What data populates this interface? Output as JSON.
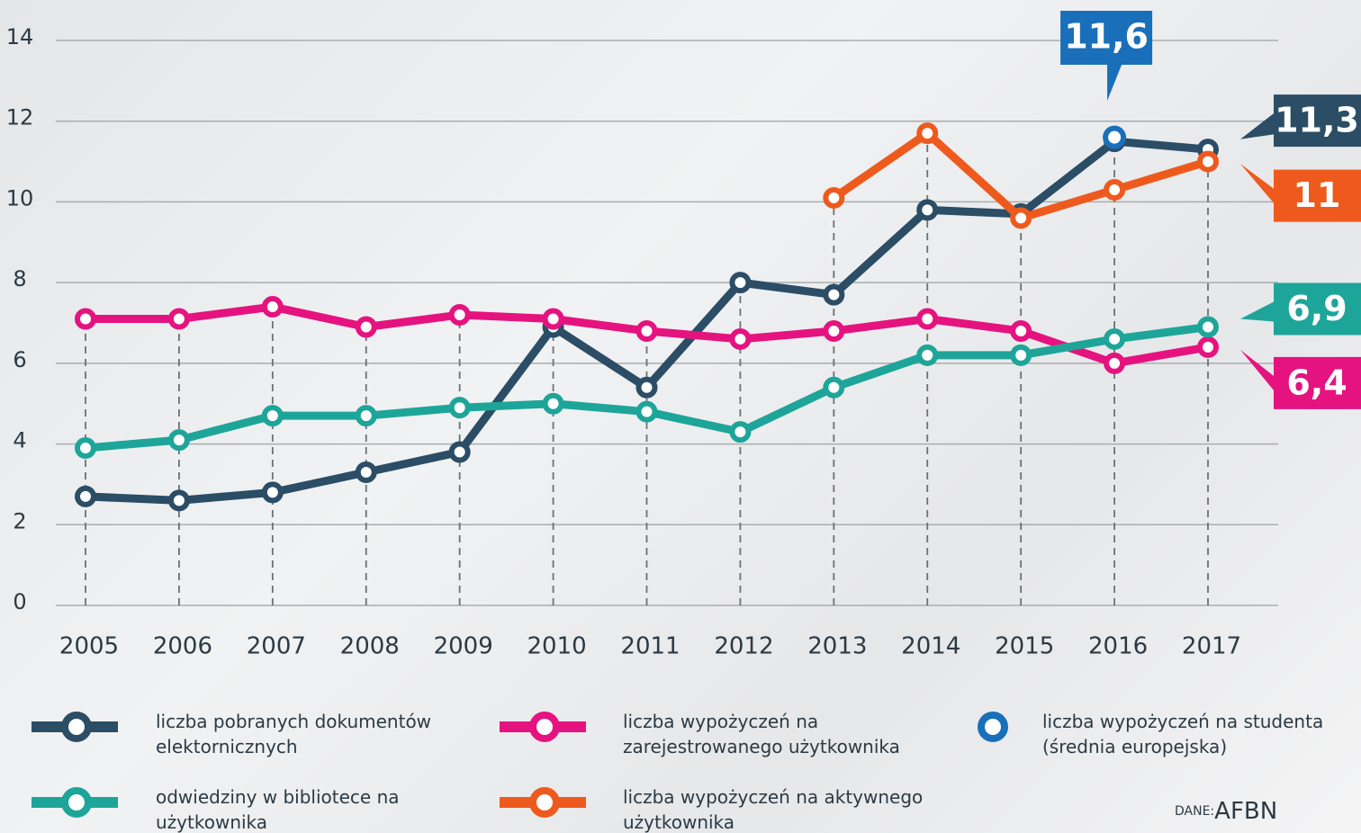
{
  "chart_data": {
    "type": "line",
    "x": [
      "2005",
      "2006",
      "2007",
      "2008",
      "2009",
      "2010",
      "2011",
      "2012",
      "2013",
      "2014",
      "2015",
      "2016",
      "2017"
    ],
    "ylim": [
      0,
      14
    ],
    "yticks": [
      0,
      2,
      4,
      6,
      8,
      10,
      12,
      14
    ],
    "grid": true,
    "series": [
      {
        "name": "liczba pobranych dokumentów elektornicznych",
        "color": "#2b4d66",
        "values": [
          2.7,
          2.6,
          2.8,
          3.3,
          3.8,
          6.9,
          5.4,
          8.0,
          7.7,
          9.8,
          9.7,
          11.5,
          11.3
        ],
        "value_labels": [
          null,
          null,
          null,
          null,
          null,
          null,
          null,
          null,
          null,
          null,
          null,
          null,
          "11,3"
        ]
      },
      {
        "name": "liczba wypożyczeń na zarejestrowanego użytkownika",
        "color": "#e5137f",
        "values": [
          7.1,
          7.1,
          7.4,
          6.9,
          7.2,
          7.1,
          6.8,
          6.6,
          6.8,
          7.1,
          6.8,
          6.0,
          6.4
        ],
        "value_labels": [
          null,
          null,
          null,
          null,
          null,
          null,
          null,
          null,
          null,
          null,
          null,
          null,
          "6,4"
        ]
      },
      {
        "name": "liczba wypożyczeń na studenta (średnia europejska)",
        "color": "#1a6fba",
        "values": [
          null,
          null,
          null,
          null,
          null,
          null,
          null,
          null,
          null,
          null,
          null,
          11.6,
          null
        ],
        "value_labels": [
          null,
          null,
          null,
          null,
          null,
          null,
          null,
          null,
          null,
          null,
          null,
          "11,6",
          null
        ]
      },
      {
        "name": "odwiedziny w bibliotece na użytkownika",
        "color": "#1ea59a",
        "values": [
          3.9,
          4.1,
          4.7,
          4.7,
          4.9,
          5.0,
          4.8,
          4.3,
          5.4,
          6.2,
          6.2,
          6.6,
          6.9
        ],
        "value_labels": [
          null,
          null,
          null,
          null,
          null,
          null,
          null,
          null,
          null,
          null,
          null,
          null,
          "6,9"
        ]
      },
      {
        "name": "liczba wypożyczeń na aktywnego użytkownika",
        "color": "#ee5a1d",
        "values": [
          null,
          null,
          null,
          null,
          null,
          null,
          null,
          null,
          10.1,
          11.7,
          9.6,
          10.3,
          11
        ],
        "value_labels": [
          null,
          null,
          null,
          null,
          null,
          null,
          null,
          null,
          null,
          null,
          null,
          null,
          "11"
        ]
      }
    ],
    "source_label": "DANE:",
    "source": "AFBN"
  }
}
